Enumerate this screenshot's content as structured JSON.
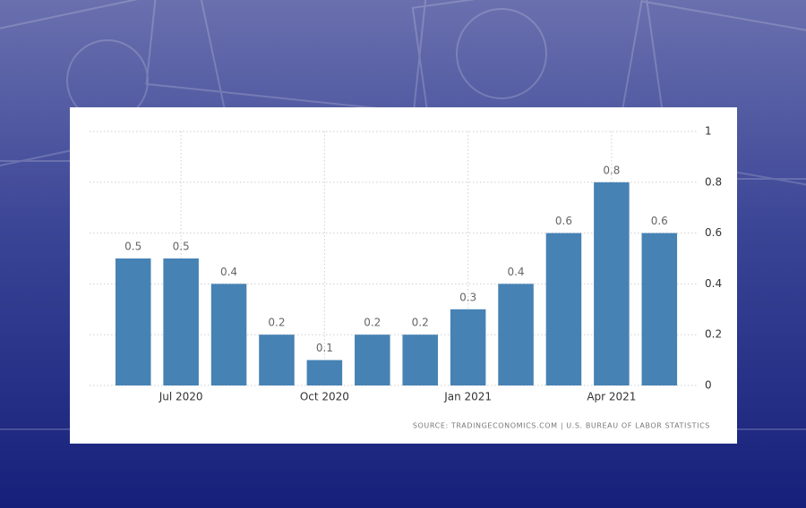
{
  "chart_data": {
    "type": "bar",
    "categories": [
      null,
      "Jul 2020",
      null,
      null,
      "Oct 2020",
      null,
      null,
      "Jan 2021",
      null,
      null,
      "Apr 2021",
      null
    ],
    "values": [
      0.5,
      0.5,
      0.4,
      0.2,
      0.1,
      0.2,
      0.2,
      0.3,
      0.4,
      0.6,
      0.8,
      0.6
    ],
    "color": "#4682b4",
    "ylim": [
      0,
      1
    ],
    "yticks": [
      0,
      0.2,
      0.4,
      0.6,
      0.8,
      1
    ],
    "grid": true,
    "source": "SOURCE: TRADINGECONOMICS.COM | U.S. BUREAU OF LABOR STATISTICS"
  }
}
